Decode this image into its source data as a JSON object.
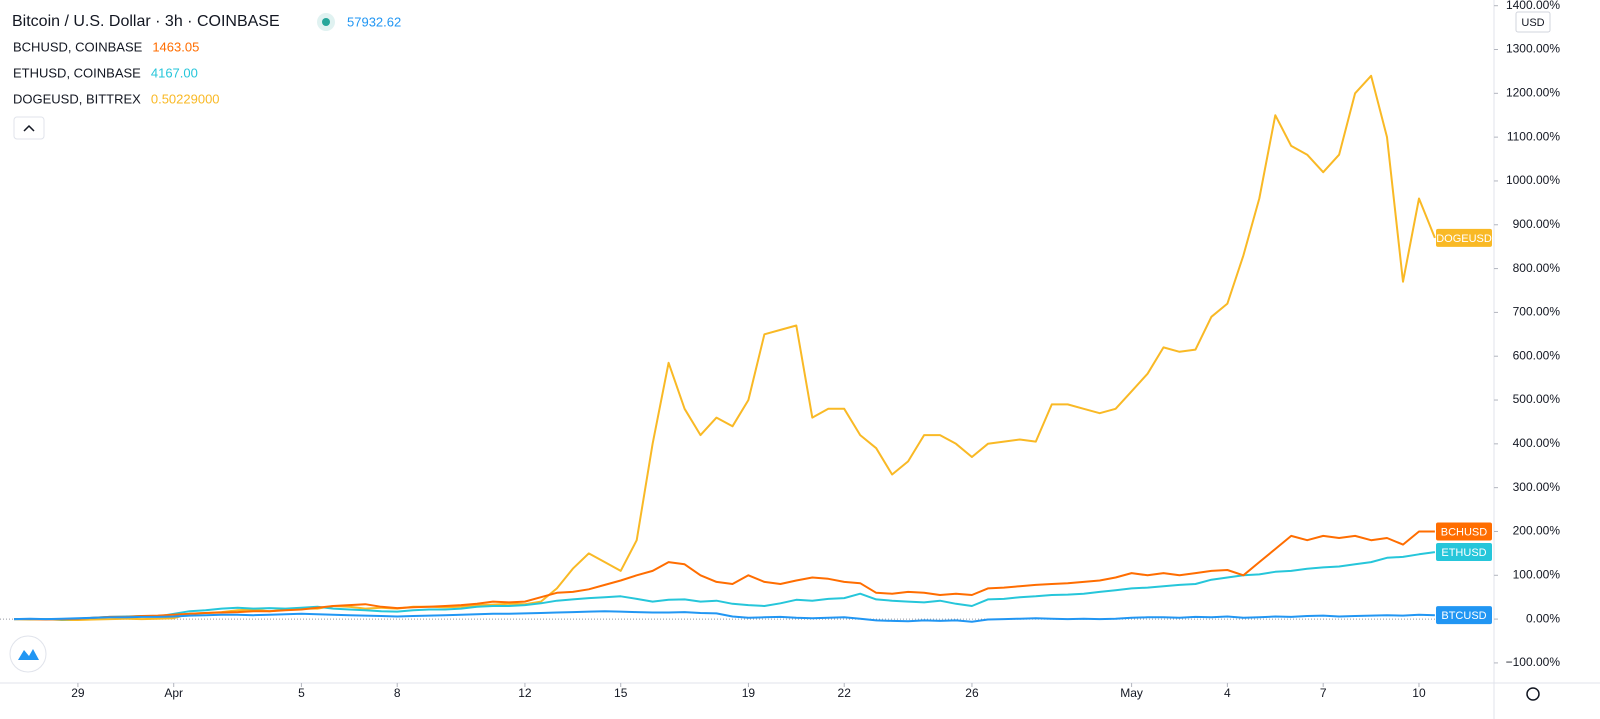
{
  "chart_data": {
    "type": "line",
    "title": "Bitcoin / U.S. Dollar · 3h · COINBASE",
    "quote": "57932.62",
    "currency": "USD",
    "x": [
      -2,
      -1.5,
      -1,
      -0.5,
      0,
      0.5,
      1,
      1.5,
      2,
      2.5,
      3,
      3.5,
      4,
      4.5,
      5,
      5.5,
      6,
      6.5,
      7,
      7.5,
      8,
      8.5,
      9,
      9.5,
      10,
      10.5,
      11,
      11.5,
      12,
      12.5,
      13,
      13.5,
      14,
      14.5,
      15,
      15.5,
      16,
      16.5,
      17,
      17.5,
      18,
      18.5,
      19,
      19.5,
      20,
      20.5,
      21,
      21.5,
      22,
      22.5,
      23,
      23.5,
      24,
      24.5,
      25,
      25.5,
      26,
      26.5,
      27,
      27.5,
      28,
      28.5,
      29,
      29.5,
      30,
      30.5,
      31,
      31.5,
      32,
      32.5,
      33,
      33.5,
      34,
      34.5,
      35,
      35.5,
      36,
      36.5,
      37,
      37.5,
      38,
      38.5,
      39,
      39.5,
      40,
      40.5,
      41,
      41.5,
      42,
      42.5
    ],
    "xlim": [
      -2.44,
      44.35
    ],
    "xticks": [
      {
        "value": 0,
        "label": "29"
      },
      {
        "value": 3,
        "label": "Apr"
      },
      {
        "value": 7,
        "label": "5"
      },
      {
        "value": 10,
        "label": "8"
      },
      {
        "value": 14,
        "label": "12"
      },
      {
        "value": 17,
        "label": "15"
      },
      {
        "value": 21,
        "label": "19"
      },
      {
        "value": 24,
        "label": "22"
      },
      {
        "value": 28,
        "label": "26"
      },
      {
        "value": 33,
        "label": "May"
      },
      {
        "value": 36,
        "label": "4"
      },
      {
        "value": 39,
        "label": "7"
      },
      {
        "value": 42,
        "label": "10"
      }
    ],
    "ylim": [
      -139,
      1413
    ],
    "yticks": [
      {
        "value": -100,
        "label": "−100.00%"
      },
      {
        "value": 0,
        "label": "0.00%"
      },
      {
        "value": 100,
        "label": "100.00%"
      },
      {
        "value": 200,
        "label": "200.00%"
      },
      {
        "value": 300,
        "label": "300.00%"
      },
      {
        "value": 400,
        "label": "400.00%"
      },
      {
        "value": 500,
        "label": "500.00%"
      },
      {
        "value": 600,
        "label": "600.00%"
      },
      {
        "value": 700,
        "label": "700.00%"
      },
      {
        "value": 800,
        "label": "800.00%"
      },
      {
        "value": 900,
        "label": "900.00%"
      },
      {
        "value": 1000,
        "label": "1000.00%"
      },
      {
        "value": 1100,
        "label": "1100.00%"
      },
      {
        "value": 1200,
        "label": "1200.00%"
      },
      {
        "value": 1300,
        "label": "1300.00%"
      },
      {
        "value": 1400,
        "label": "1400.00%"
      }
    ],
    "series": [
      {
        "name": "BTCUSD",
        "color": "#2196f3",
        "values": [
          0,
          1,
          0,
          1,
          2,
          3,
          4,
          4,
          5,
          5,
          6,
          8,
          9,
          10,
          10,
          9,
          10,
          11,
          12,
          11,
          10,
          9,
          8,
          7,
          6,
          7,
          8,
          9,
          10,
          11,
          12,
          12,
          13,
          14,
          15,
          16,
          17,
          18,
          17,
          16,
          15,
          15,
          16,
          14,
          13,
          6,
          3,
          4,
          5,
          3,
          2,
          3,
          4,
          1,
          -3,
          -4,
          -5,
          -3,
          -4,
          -3,
          -6,
          -1,
          0,
          1,
          2,
          1,
          0,
          1,
          0,
          1,
          3,
          4,
          4,
          3,
          5,
          4,
          6,
          3,
          4,
          6,
          5,
          7,
          8,
          6,
          7,
          8,
          9,
          8,
          10,
          9
        ]
      },
      {
        "name": "BCHUSD",
        "legend": "BCHUSD, COINBASE",
        "quote": "1463.05",
        "color": "#ff6d00",
        "values": [
          0,
          0,
          -1,
          0,
          1,
          3,
          5,
          5,
          7,
          8,
          10,
          12,
          14,
          15,
          16,
          18,
          18,
          20,
          22,
          26,
          30,
          32,
          34,
          28,
          25,
          27,
          28,
          30,
          32,
          35,
          40,
          38,
          40,
          50,
          60,
          62,
          68,
          78,
          88,
          100,
          110,
          130,
          125,
          100,
          85,
          80,
          100,
          85,
          80,
          88,
          95,
          92,
          85,
          82,
          60,
          58,
          62,
          60,
          55,
          58,
          55,
          70,
          72,
          75,
          78,
          80,
          82,
          85,
          88,
          95,
          105,
          100,
          105,
          100,
          105,
          110,
          112,
          100,
          130,
          160,
          190,
          180,
          190,
          185,
          190,
          180,
          185,
          170,
          200,
          200
        ]
      },
      {
        "name": "ETHUSD",
        "legend": "ETHUSD, COINBASE",
        "quote": "4167.00",
        "color": "#26c6da",
        "values": [
          0,
          0,
          0,
          -1,
          1,
          3,
          5,
          6,
          7,
          6,
          12,
          18,
          20,
          24,
          26,
          24,
          25,
          24,
          26,
          28,
          24,
          22,
          20,
          18,
          17,
          20,
          22,
          22,
          24,
          28,
          30,
          30,
          32,
          36,
          42,
          45,
          48,
          50,
          52,
          46,
          40,
          44,
          45,
          40,
          42,
          35,
          32,
          30,
          36,
          44,
          42,
          46,
          48,
          58,
          45,
          42,
          40,
          38,
          42,
          35,
          30,
          45,
          46,
          50,
          52,
          55,
          56,
          58,
          62,
          66,
          70,
          72,
          75,
          78,
          80,
          90,
          95,
          100,
          102,
          108,
          110,
          115,
          118,
          120,
          125,
          130,
          140,
          142,
          148,
          153
        ]
      },
      {
        "name": "DOGEUSD",
        "legend": "DOGEUSD, BITTREX",
        "quote": "0.50229000",
        "color": "#f9b925",
        "values": [
          0,
          -1,
          0,
          -2,
          -2,
          -1,
          0,
          1,
          0,
          1,
          2,
          12,
          14,
          16,
          20,
          22,
          18,
          22,
          24,
          24,
          30,
          28,
          24,
          26,
          24,
          28,
          28,
          27,
          28,
          32,
          33,
          35,
          34,
          40,
          70,
          115,
          150,
          130,
          110,
          180,
          400,
          585,
          480,
          420,
          460,
          440,
          500,
          650,
          660,
          670,
          460,
          480,
          480,
          420,
          390,
          330,
          360,
          420,
          420,
          400,
          370,
          400,
          405,
          410,
          405,
          490,
          490,
          480,
          470,
          480,
          520,
          560,
          620,
          610,
          615,
          690,
          720,
          830,
          960,
          1150,
          1080,
          1060,
          1020,
          1060,
          1200,
          1240,
          1100,
          770,
          960,
          870
        ]
      }
    ]
  }
}
